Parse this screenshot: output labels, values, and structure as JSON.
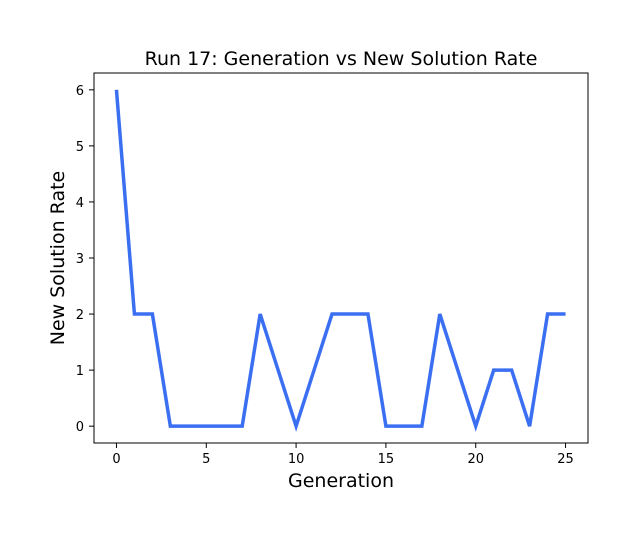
{
  "chart_data": {
    "type": "line",
    "title": "Run 17: Generation vs New Solution Rate",
    "xlabel": "Generation",
    "ylabel": "New Solution Rate",
    "xlim": [
      -1.25,
      26.25
    ],
    "ylim": [
      -0.3,
      6.3
    ],
    "xticks": [
      0,
      5,
      10,
      15,
      20,
      25
    ],
    "yticks": [
      0,
      1,
      2,
      3,
      4,
      5,
      6
    ],
    "grid": false,
    "series": [
      {
        "name": "New Solution Rate",
        "color": "#3b6ff2",
        "x": [
          0,
          1,
          2,
          3,
          4,
          5,
          6,
          7,
          8,
          9,
          10,
          11,
          12,
          13,
          14,
          15,
          16,
          17,
          18,
          19,
          20,
          21,
          22,
          23,
          24,
          25
        ],
        "values": [
          6,
          2,
          2,
          0,
          0,
          0,
          0,
          0,
          2,
          1,
          0,
          1,
          2,
          2,
          2,
          0,
          0,
          0,
          2,
          1,
          0,
          1,
          1,
          0,
          2,
          2
        ]
      }
    ]
  }
}
